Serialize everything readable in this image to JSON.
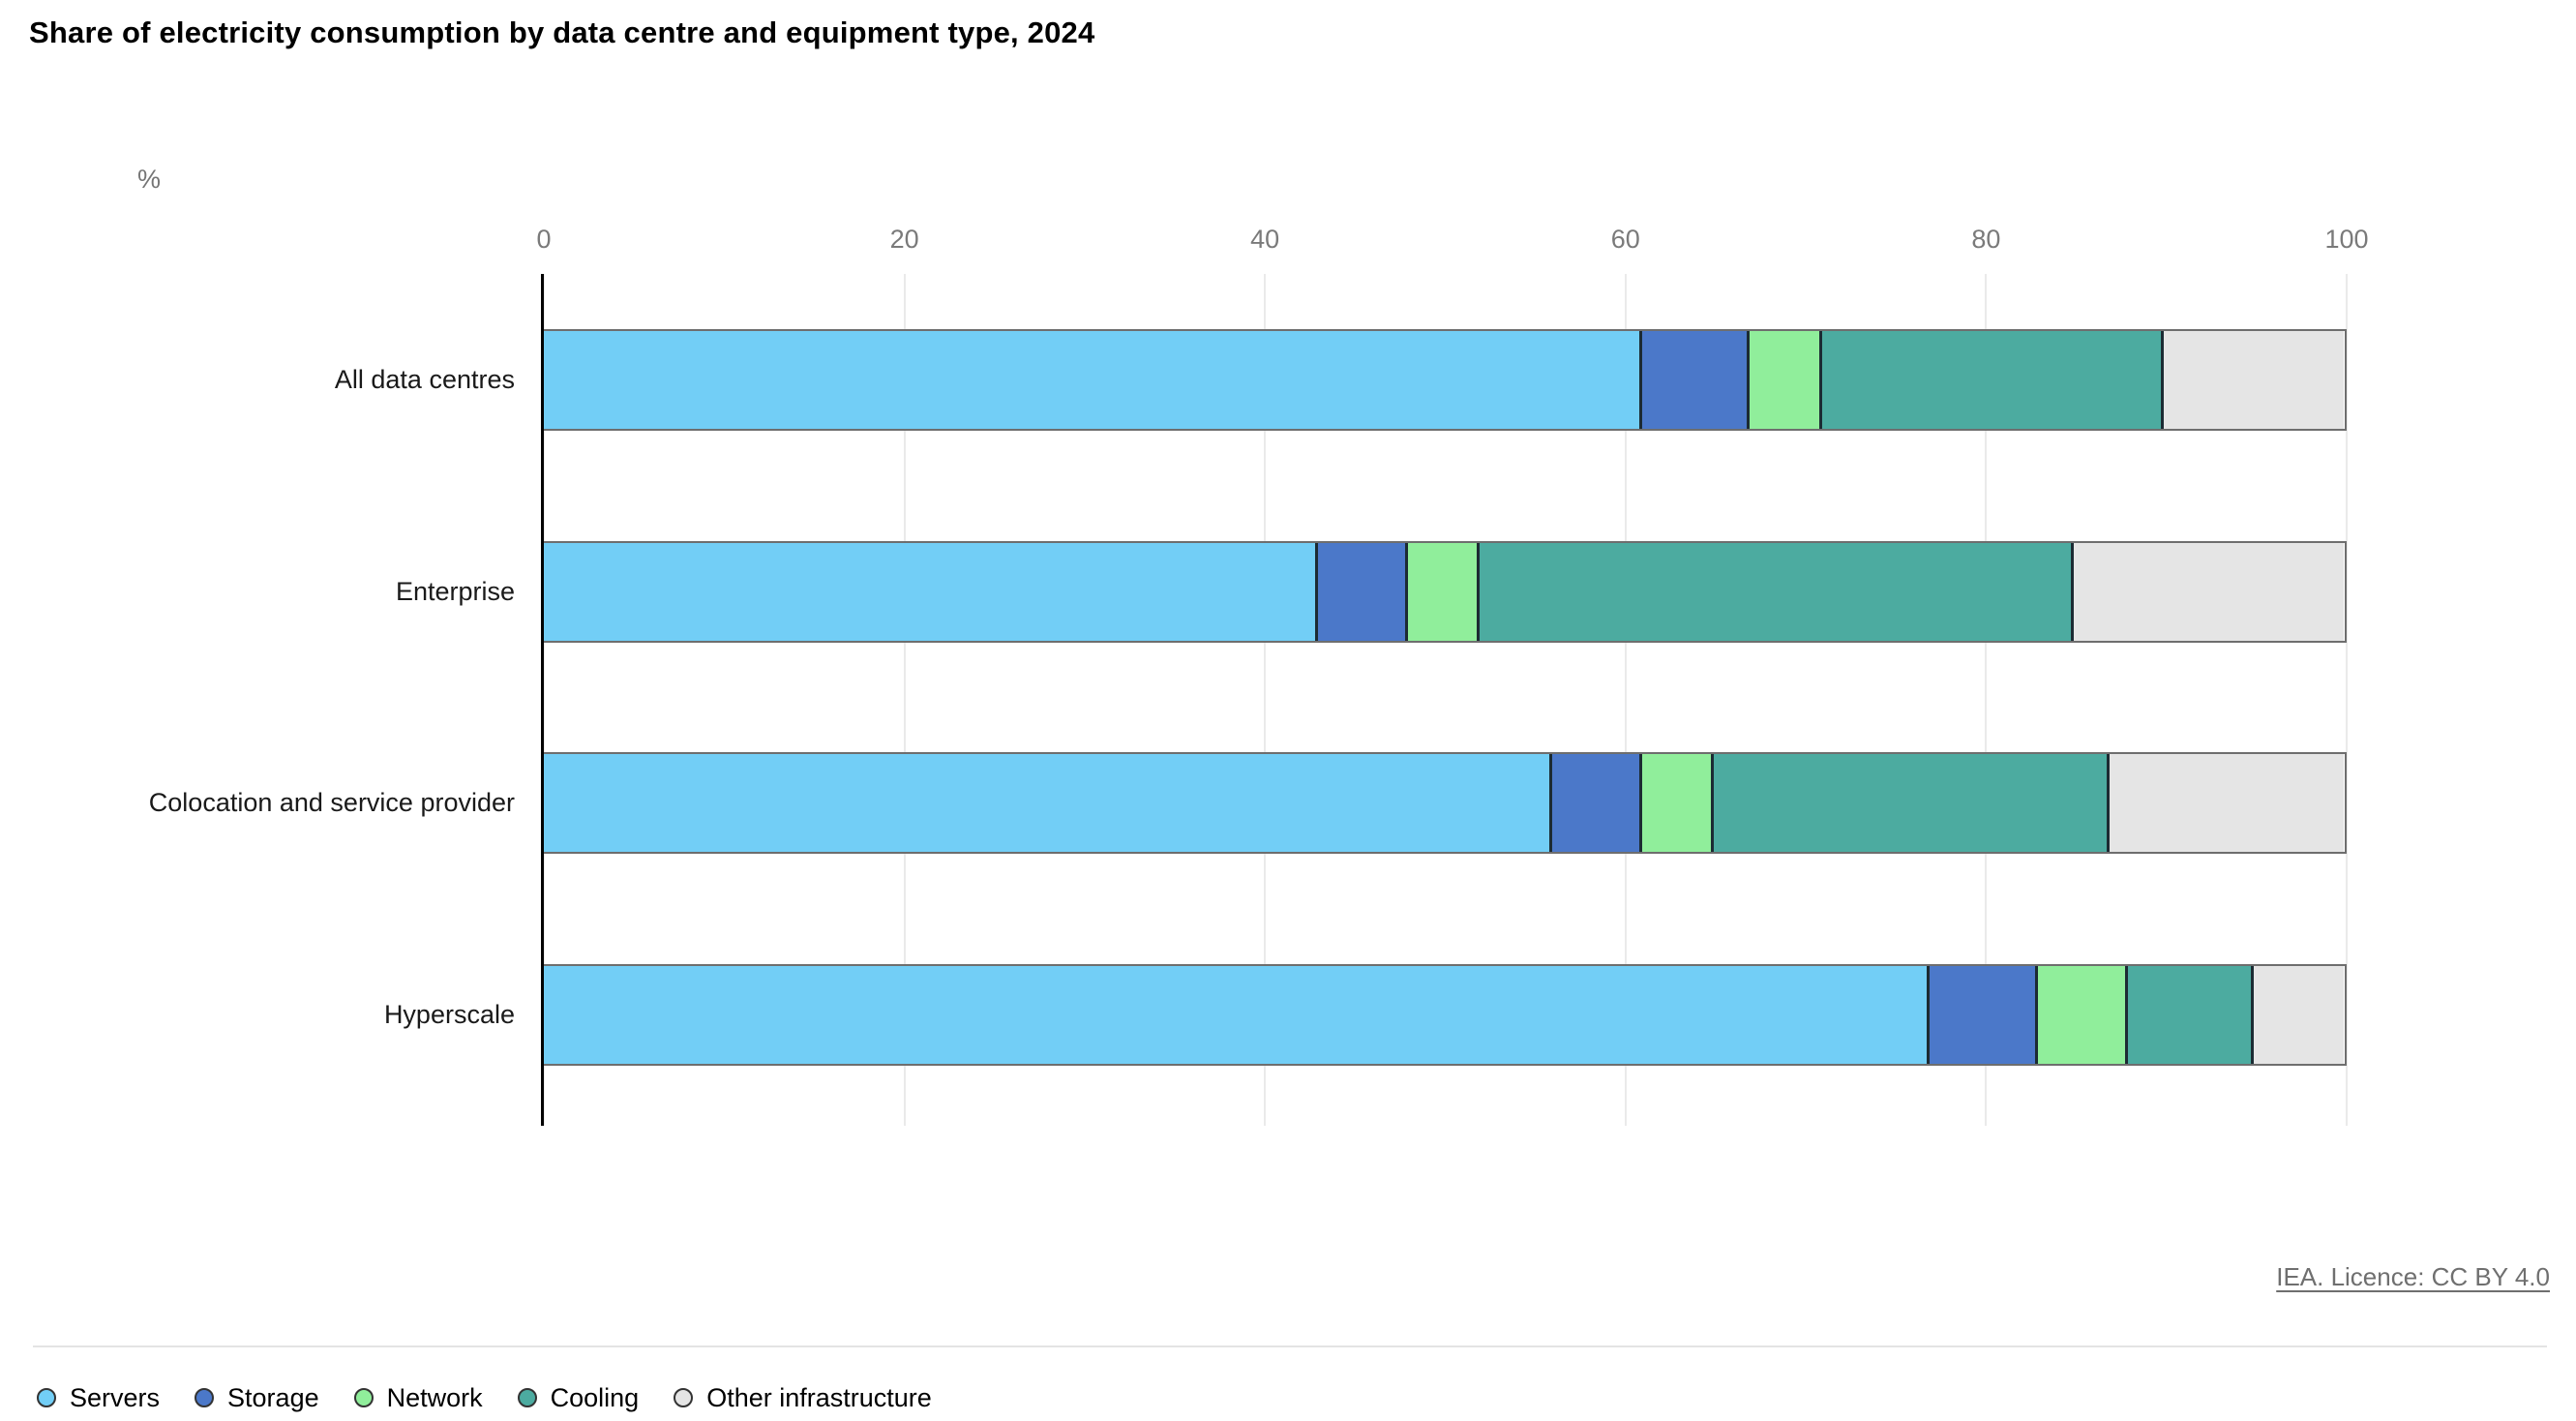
{
  "page": {
    "title": "Share of electricity consumption by data centre and equipment type, 2024",
    "attribution": "IEA. Licence: CC BY 4.0"
  },
  "chart_data": {
    "type": "bar",
    "orientation": "horizontal",
    "stacked": true,
    "title": "Share of electricity consumption by data centre and equipment type, 2024",
    "unit_label": "%",
    "xlabel": "%",
    "ylabel": "",
    "xlim": [
      0,
      100
    ],
    "x_ticks": [
      0,
      20,
      40,
      60,
      80,
      100
    ],
    "grid": true,
    "legend_position": "bottom",
    "categories": [
      "All data centres",
      "Enterprise",
      "Colocation and service provider",
      "Hyperscale"
    ],
    "series": [
      {
        "name": "Servers",
        "color": "#72CEF6",
        "values": [
          61,
          43,
          56,
          77
        ]
      },
      {
        "name": "Storage",
        "color": "#4B78C9",
        "values": [
          6,
          5,
          5,
          6
        ]
      },
      {
        "name": "Network",
        "color": "#90EE9B",
        "values": [
          4,
          4,
          4,
          5
        ]
      },
      {
        "name": "Cooling",
        "color": "#4CABA0",
        "values": [
          19,
          33,
          22,
          7
        ]
      },
      {
        "name": "Other infrastructure",
        "color": "#E5E5E5",
        "values": [
          10,
          15,
          13,
          5
        ]
      }
    ],
    "colors": {
      "axis": "#000000",
      "gridline": "#EAEAEA",
      "bar_outline": "#6E6E6E",
      "segment_divider": "#1C2B33",
      "tick_text": "#7A7A7A",
      "attribution_text": "#6F6F6F"
    }
  }
}
